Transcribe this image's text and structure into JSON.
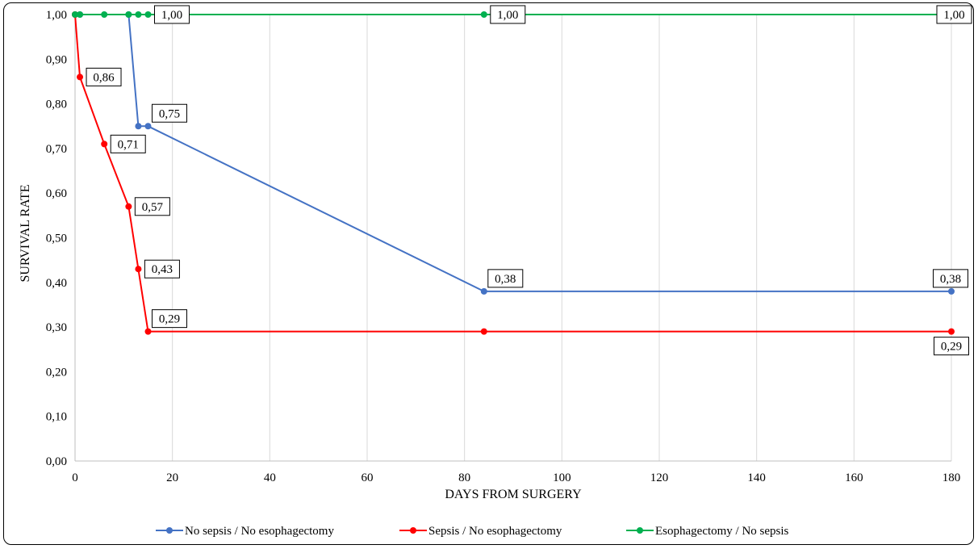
{
  "chart_data": {
    "type": "line",
    "title": "",
    "xlabel": "DAYS FROM SURGERY",
    "ylabel": "SURVIVAL RATE",
    "xlim": [
      0,
      180
    ],
    "ylim": [
      0,
      1
    ],
    "x_ticks": [
      "0",
      "20",
      "40",
      "60",
      "80",
      "100",
      "120",
      "140",
      "160",
      "180"
    ],
    "y_ticks": [
      "0,00",
      "0,10",
      "0,20",
      "0,30",
      "0,40",
      "0,50",
      "0,60",
      "0,70",
      "0,80",
      "0,90",
      "1,00"
    ],
    "grid": "vertical",
    "legend_position": "bottom",
    "series": [
      {
        "name": "No sepsis / No esophagectomy",
        "color": "#4472C4",
        "points": [
          [
            0,
            1.0
          ],
          [
            1,
            1.0
          ],
          [
            11,
            1.0
          ],
          [
            13,
            0.75
          ],
          [
            15,
            0.75
          ],
          [
            84,
            0.38
          ],
          [
            180,
            0.38
          ]
        ],
        "labels": [
          {
            "index": 4,
            "text": "0,75",
            "pos": "above-right"
          },
          {
            "index": 5,
            "text": "0,38",
            "pos": "above-right"
          },
          {
            "index": 6,
            "text": "0,38",
            "pos": "above"
          }
        ]
      },
      {
        "name": "Sepsis / No esophagectomy",
        "color": "#FF0000",
        "points": [
          [
            0,
            1.0
          ],
          [
            1,
            0.86
          ],
          [
            6,
            0.71
          ],
          [
            11,
            0.57
          ],
          [
            13,
            0.43
          ],
          [
            15,
            0.29
          ],
          [
            84,
            0.29
          ],
          [
            180,
            0.29
          ]
        ],
        "labels": [
          {
            "index": 1,
            "text": "0,86",
            "pos": "right"
          },
          {
            "index": 2,
            "text": "0,71",
            "pos": "right"
          },
          {
            "index": 3,
            "text": "0,57",
            "pos": "right"
          },
          {
            "index": 4,
            "text": "0,43",
            "pos": "right"
          },
          {
            "index": 5,
            "text": "0,29",
            "pos": "above-right"
          },
          {
            "index": 7,
            "text": "0,29",
            "pos": "below"
          }
        ]
      },
      {
        "name": "Esophagectomy / No sepsis",
        "color": "#00B050",
        "points": [
          [
            0,
            1.0
          ],
          [
            1,
            1.0
          ],
          [
            6,
            1.0
          ],
          [
            11,
            1.0
          ],
          [
            13,
            1.0
          ],
          [
            15,
            1.0
          ],
          [
            84,
            1.0
          ],
          [
            180,
            1.0
          ]
        ],
        "labels": [
          {
            "index": 5,
            "text": "1,00",
            "pos": "right"
          },
          {
            "index": 6,
            "text": "1,00",
            "pos": "right"
          },
          {
            "index": 7,
            "text": "1,00",
            "pos": "right"
          }
        ]
      }
    ]
  }
}
